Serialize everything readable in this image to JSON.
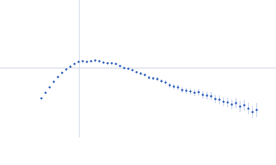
{
  "chart_data": {
    "type": "scatter",
    "color": "#3a68c0",
    "xlim": [
      0,
      400
    ],
    "ylim": [
      0,
      200
    ],
    "x": [
      60,
      66,
      72,
      78,
      84,
      90,
      96,
      102,
      108,
      114,
      120,
      126,
      132,
      138,
      144,
      150,
      156,
      162,
      168,
      174,
      180,
      186,
      192,
      198,
      204,
      210,
      216,
      222,
      228,
      234,
      240,
      246,
      252,
      258,
      264,
      270,
      276,
      282,
      288,
      294,
      300,
      306,
      312,
      318,
      324,
      330,
      336,
      342,
      348,
      354,
      360,
      366,
      372
    ],
    "values": [
      57,
      65,
      73,
      81,
      88,
      94,
      99,
      103,
      107,
      110,
      111,
      110,
      111,
      112,
      111,
      109,
      108,
      108,
      107,
      104,
      101,
      100,
      98,
      95,
      93,
      91,
      87,
      86,
      85,
      82,
      80,
      76,
      74,
      73,
      69,
      68,
      67,
      65,
      66,
      62,
      61,
      60,
      56,
      55,
      52,
      51,
      48,
      50,
      45,
      47,
      42,
      37,
      40
    ],
    "errors": [
      0.5,
      0.5,
      0.5,
      0.5,
      0.5,
      0.5,
      0.5,
      0.5,
      0.5,
      0.5,
      0.5,
      0.5,
      0.5,
      0.5,
      0.5,
      0.5,
      0.5,
      0.5,
      0.5,
      0.5,
      1,
      1,
      1.5,
      1.5,
      2,
      2,
      2.5,
      2.5,
      3,
      3,
      3,
      3.5,
      3.5,
      4,
      4,
      4.5,
      4.5,
      5,
      5,
      5.5,
      5.5,
      6,
      6,
      6.5,
      6.5,
      7,
      7,
      7.5,
      8,
      8,
      8.5,
      9,
      10
    ]
  }
}
